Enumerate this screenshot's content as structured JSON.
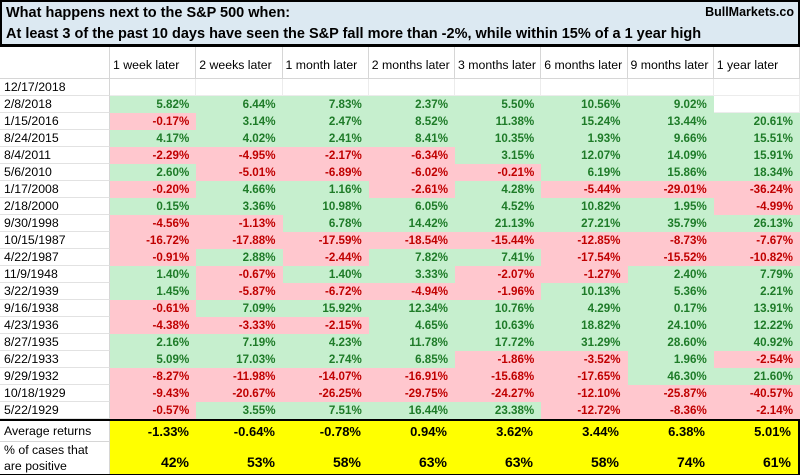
{
  "header": {
    "title": "What happens next to the S&P 500 when:",
    "subtitle": "At least 3 of the past 10 days have seen the S&P fall more than -2%, while within 15% of a 1 year high",
    "brand": "BullMarkets.co"
  },
  "table": {
    "columns": [
      "1 week later",
      "2 weeks later",
      "1 month later",
      "2 months later",
      "3 months later",
      "6 months later",
      "9 months later",
      "1 year later"
    ],
    "rows": [
      {
        "date": "12/17/2018",
        "values": [
          "",
          "",
          "",
          "",
          "",
          "",
          "",
          ""
        ]
      },
      {
        "date": "2/8/2018",
        "values": [
          "5.82%",
          "6.44%",
          "7.83%",
          "2.37%",
          "5.50%",
          "10.56%",
          "9.02%",
          ""
        ]
      },
      {
        "date": "1/15/2016",
        "values": [
          "-0.17%",
          "3.14%",
          "2.47%",
          "8.52%",
          "11.38%",
          "15.24%",
          "13.44%",
          "20.61%"
        ]
      },
      {
        "date": "8/24/2015",
        "values": [
          "4.17%",
          "4.02%",
          "2.41%",
          "8.41%",
          "10.35%",
          "1.93%",
          "9.66%",
          "15.51%"
        ]
      },
      {
        "date": "8/4/2011",
        "values": [
          "-2.29%",
          "-4.95%",
          "-2.17%",
          "-6.34%",
          "3.15%",
          "12.07%",
          "14.09%",
          "15.91%"
        ]
      },
      {
        "date": "5/6/2010",
        "values": [
          "2.60%",
          "-5.01%",
          "-6.89%",
          "-6.02%",
          "-0.21%",
          "6.19%",
          "15.86%",
          "18.34%"
        ]
      },
      {
        "date": "1/17/2008",
        "values": [
          "-0.20%",
          "4.66%",
          "1.16%",
          "-2.61%",
          "4.28%",
          "-5.44%",
          "-29.01%",
          "-36.24%"
        ]
      },
      {
        "date": "2/18/2000",
        "values": [
          "0.15%",
          "3.36%",
          "10.98%",
          "6.05%",
          "4.52%",
          "10.82%",
          "1.95%",
          "-4.99%"
        ]
      },
      {
        "date": "9/30/1998",
        "values": [
          "-4.56%",
          "-1.13%",
          "6.78%",
          "14.42%",
          "21.13%",
          "27.21%",
          "35.79%",
          "26.13%"
        ]
      },
      {
        "date": "10/15/1987",
        "values": [
          "-16.72%",
          "-17.88%",
          "-17.59%",
          "-18.54%",
          "-15.44%",
          "-12.85%",
          "-8.73%",
          "-7.67%"
        ]
      },
      {
        "date": "4/22/1987",
        "values": [
          "-0.91%",
          "2.88%",
          "-2.44%",
          "7.82%",
          "7.41%",
          "-17.54%",
          "-15.52%",
          "-10.82%"
        ]
      },
      {
        "date": "11/9/1948",
        "values": [
          "1.40%",
          "-0.67%",
          "1.40%",
          "3.33%",
          "-2.07%",
          "-1.27%",
          "2.40%",
          "7.79%"
        ]
      },
      {
        "date": "3/22/1939",
        "values": [
          "1.45%",
          "-5.87%",
          "-6.72%",
          "-4.94%",
          "-1.96%",
          "10.13%",
          "5.36%",
          "2.21%"
        ]
      },
      {
        "date": "9/16/1938",
        "values": [
          "-0.61%",
          "7.09%",
          "15.92%",
          "12.34%",
          "10.76%",
          "4.29%",
          "0.17%",
          "13.91%"
        ]
      },
      {
        "date": "4/23/1936",
        "values": [
          "-4.38%",
          "-3.33%",
          "-2.15%",
          "4.65%",
          "10.63%",
          "18.82%",
          "24.10%",
          "12.22%"
        ]
      },
      {
        "date": "8/27/1935",
        "values": [
          "2.16%",
          "7.19%",
          "4.23%",
          "11.78%",
          "17.72%",
          "31.29%",
          "28.60%",
          "40.92%"
        ]
      },
      {
        "date": "6/22/1933",
        "values": [
          "5.09%",
          "17.03%",
          "2.74%",
          "6.85%",
          "-1.86%",
          "-3.52%",
          "1.96%",
          "-2.54%"
        ]
      },
      {
        "date": "9/29/1932",
        "values": [
          "-8.27%",
          "-11.98%",
          "-14.07%",
          "-16.91%",
          "-15.68%",
          "-17.65%",
          "46.30%",
          "21.60%"
        ]
      },
      {
        "date": "10/18/1929",
        "values": [
          "-9.43%",
          "-20.67%",
          "-26.25%",
          "-29.75%",
          "-24.27%",
          "-12.10%",
          "-25.87%",
          "-40.57%"
        ]
      },
      {
        "date": "5/22/1929",
        "values": [
          "-0.57%",
          "3.55%",
          "7.51%",
          "16.44%",
          "23.38%",
          "-12.72%",
          "-8.36%",
          "-2.14%"
        ]
      }
    ],
    "summary": {
      "avg_label": "Average returns",
      "avg_values": [
        "-1.33%",
        "-0.64%",
        "-0.78%",
        "0.94%",
        "3.62%",
        "3.44%",
        "6.38%",
        "5.01%"
      ],
      "pct_label": "% of cases that are positive",
      "pct_values": [
        "42%",
        "53%",
        "58%",
        "63%",
        "63%",
        "58%",
        "74%",
        "61%"
      ]
    }
  },
  "colors": {
    "title_background": "#dce9f2",
    "positive_fill": "#c6efce",
    "positive_text": "#1e7b28",
    "negative_fill": "#ffc7ce",
    "negative_text": "#c00000",
    "summary_fill": "#ffff00",
    "border": "#000000",
    "gridline": "#d6d6d6"
  },
  "chart_data": {
    "type": "table",
    "title": "What happens next to the S&P 500 when:",
    "subtitle": "At least 3 of the past 10 days have seen the S&P fall more than -2%, while within 15% of a 1 year high",
    "source": "BullMarkets.co",
    "columns": [
      "1 week later",
      "2 weeks later",
      "1 month later",
      "2 months later",
      "3 months later",
      "6 months later",
      "9 months later",
      "1 year later"
    ],
    "rows": [
      {
        "date": "12/17/2018",
        "returns_pct": [
          null,
          null,
          null,
          null,
          null,
          null,
          null,
          null
        ]
      },
      {
        "date": "2/8/2018",
        "returns_pct": [
          5.82,
          6.44,
          7.83,
          2.37,
          5.5,
          10.56,
          9.02,
          null
        ]
      },
      {
        "date": "1/15/2016",
        "returns_pct": [
          -0.17,
          3.14,
          2.47,
          8.52,
          11.38,
          15.24,
          13.44,
          20.61
        ]
      },
      {
        "date": "8/24/2015",
        "returns_pct": [
          4.17,
          4.02,
          2.41,
          8.41,
          10.35,
          1.93,
          9.66,
          15.51
        ]
      },
      {
        "date": "8/4/2011",
        "returns_pct": [
          -2.29,
          -4.95,
          -2.17,
          -6.34,
          3.15,
          12.07,
          14.09,
          15.91
        ]
      },
      {
        "date": "5/6/2010",
        "returns_pct": [
          2.6,
          -5.01,
          -6.89,
          -6.02,
          -0.21,
          6.19,
          15.86,
          18.34
        ]
      },
      {
        "date": "1/17/2008",
        "returns_pct": [
          -0.2,
          4.66,
          1.16,
          -2.61,
          4.28,
          -5.44,
          -29.01,
          -36.24
        ]
      },
      {
        "date": "2/18/2000",
        "returns_pct": [
          0.15,
          3.36,
          10.98,
          6.05,
          4.52,
          10.82,
          1.95,
          -4.99
        ]
      },
      {
        "date": "9/30/1998",
        "returns_pct": [
          -4.56,
          -1.13,
          6.78,
          14.42,
          21.13,
          27.21,
          35.79,
          26.13
        ]
      },
      {
        "date": "10/15/1987",
        "returns_pct": [
          -16.72,
          -17.88,
          -17.59,
          -18.54,
          -15.44,
          -12.85,
          -8.73,
          -7.67
        ]
      },
      {
        "date": "4/22/1987",
        "returns_pct": [
          -0.91,
          2.88,
          -2.44,
          7.82,
          7.41,
          -17.54,
          -15.52,
          -10.82
        ]
      },
      {
        "date": "11/9/1948",
        "returns_pct": [
          1.4,
          -0.67,
          1.4,
          3.33,
          -2.07,
          -1.27,
          2.4,
          7.79
        ]
      },
      {
        "date": "3/22/1939",
        "returns_pct": [
          1.45,
          -5.87,
          -6.72,
          -4.94,
          -1.96,
          10.13,
          5.36,
          2.21
        ]
      },
      {
        "date": "9/16/1938",
        "returns_pct": [
          -0.61,
          7.09,
          15.92,
          12.34,
          10.76,
          4.29,
          0.17,
          13.91
        ]
      },
      {
        "date": "4/23/1936",
        "returns_pct": [
          -4.38,
          -3.33,
          -2.15,
          4.65,
          10.63,
          18.82,
          24.1,
          12.22
        ]
      },
      {
        "date": "8/27/1935",
        "returns_pct": [
          2.16,
          7.19,
          4.23,
          11.78,
          17.72,
          31.29,
          28.6,
          40.92
        ]
      },
      {
        "date": "6/22/1933",
        "returns_pct": [
          5.09,
          17.03,
          2.74,
          6.85,
          -1.86,
          -3.52,
          1.96,
          -2.54
        ]
      },
      {
        "date": "9/29/1932",
        "returns_pct": [
          -8.27,
          -11.98,
          -14.07,
          -16.91,
          -15.68,
          -17.65,
          46.3,
          21.6
        ]
      },
      {
        "date": "10/18/1929",
        "returns_pct": [
          -9.43,
          -20.67,
          -26.25,
          -29.75,
          -24.27,
          -12.1,
          -25.87,
          -40.57
        ]
      },
      {
        "date": "5/22/1929",
        "returns_pct": [
          -0.57,
          3.55,
          7.51,
          16.44,
          23.38,
          -12.72,
          -8.36,
          -2.14
        ]
      }
    ],
    "average_returns_pct": [
      -1.33,
      -0.64,
      -0.78,
      0.94,
      3.62,
      3.44,
      6.38,
      5.01
    ],
    "percent_of_cases_positive": [
      42,
      53,
      58,
      63,
      63,
      58,
      74,
      61
    ]
  }
}
